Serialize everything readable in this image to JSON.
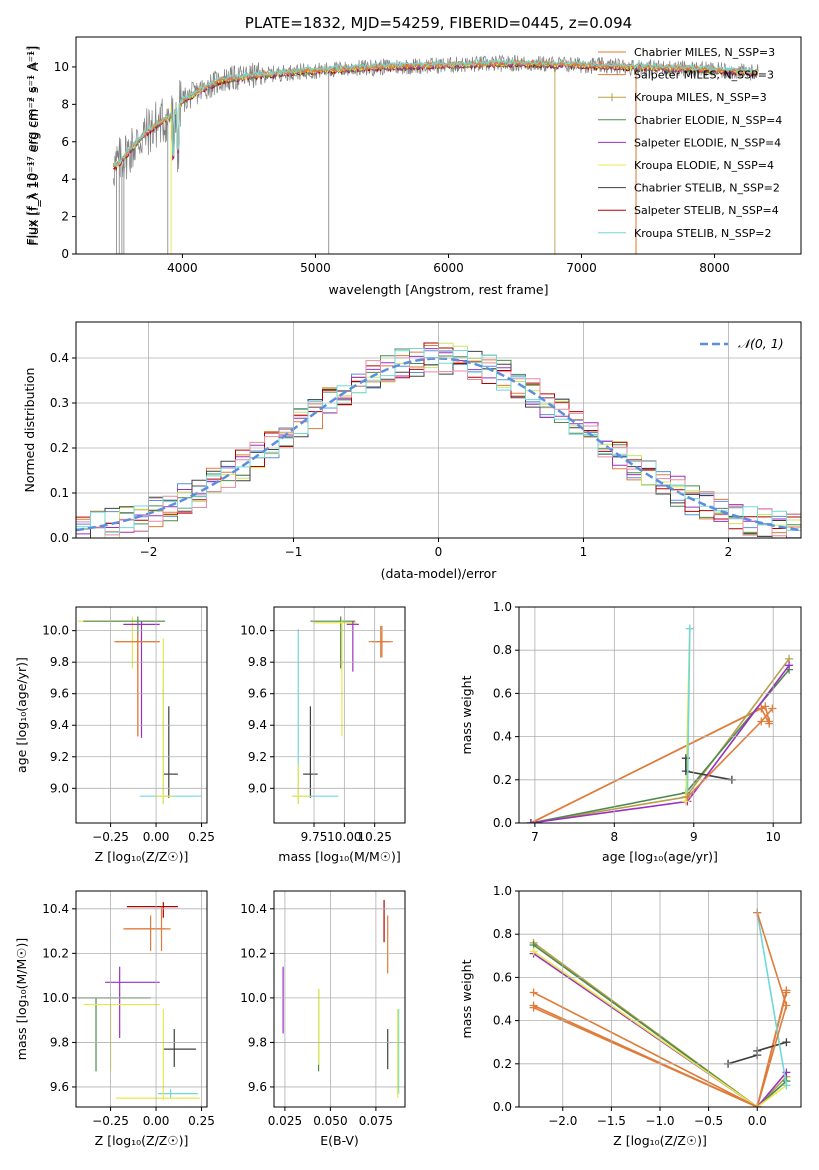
{
  "colors": {
    "grid": "#b0b0b0",
    "data": "#808080",
    "model": [
      "#e07b39",
      "#e07b39",
      "#b8a04a",
      "#4e8a4e",
      "#9b30c0",
      "#e8e848",
      "#404040",
      "#b00000",
      "#70d8d8"
    ],
    "hist": [
      "#e07b39",
      "#5b8ee0",
      "#4e8a4e",
      "#9b30c0",
      "#c8e860",
      "#404040",
      "#b00000",
      "#e88aa0",
      "#70d8d8"
    ],
    "normal": "#5b8ee0"
  },
  "chart_data": [
    {
      "id": "spectrum",
      "type": "line",
      "title": "PLATE=1832, MJD=54259, FIBERID=0445, z=0.094",
      "xlabel": "wavelength [Angstrom, rest frame]",
      "ylabel": "Flux [f_λ 10⁻¹⁷ erg cm⁻² s⁻¹ A⁻¹]",
      "xlim": [
        3200,
        8650
      ],
      "ylim": [
        0,
        11.6
      ],
      "xticks": [
        "4000",
        "5000",
        "6000",
        "7000",
        "8000"
      ],
      "yticks": [
        "0",
        "2",
        "4",
        "6",
        "8",
        "10"
      ],
      "legend_position": "top-right",
      "series": [
        {
          "name": "Chabrier MILES, N_SSP=3"
        },
        {
          "name": "Salpeter MILES, N_SSP=3"
        },
        {
          "name": "Kroupa MILES, N_SSP=3"
        },
        {
          "name": "Chabrier ELODIE, N_SSP=4"
        },
        {
          "name": "Salpeter ELODIE, N_SSP=4"
        },
        {
          "name": "Kroupa ELODIE, N_SSP=4"
        },
        {
          "name": "Chabrier STELIB, N_SSP=2"
        },
        {
          "name": "Salpeter STELIB, N_SSP=4"
        },
        {
          "name": "Kroupa STELIB, N_SSP=2"
        }
      ],
      "continuum_x": [
        3500,
        3600,
        3700,
        3800,
        3900,
        3950,
        4000,
        4100,
        4200,
        4300,
        4500,
        4800,
        5000,
        5500,
        6000,
        6500,
        7000,
        7400,
        7800,
        8300
      ],
      "continuum_y": [
        4.7,
        5.5,
        6.3,
        6.9,
        7.3,
        7.6,
        8.2,
        8.6,
        9.0,
        9.3,
        9.5,
        9.7,
        9.8,
        10.0,
        10.1,
        10.2,
        10.1,
        10.0,
        9.9,
        9.7
      ]
    },
    {
      "id": "residuals",
      "type": "histogram",
      "xlabel": "(data-model)/error",
      "ylabel": "Normed distribution",
      "xlim": [
        -2.5,
        2.5
      ],
      "ylim": [
        0,
        0.48
      ],
      "xticks": [
        "−2",
        "−1",
        "0",
        "1",
        "2"
      ],
      "yticks": [
        "0.0",
        "0.1",
        "0.2",
        "0.3",
        "0.4"
      ],
      "legend": "𝒩(0, 1)",
      "legend_position": "top-right"
    },
    {
      "id": "age-vs-Z",
      "type": "errorbar",
      "xlabel": "Z [log₁₀(Z/Z☉)]",
      "ylabel": "age [log₁₀(age/yr)]",
      "xlim": [
        -0.44,
        0.28
      ],
      "ylim": [
        8.78,
        10.15
      ],
      "xticks": [
        {
          "v": -0.25,
          "t": "−0.25"
        },
        {
          "v": 0,
          "t": "0.00"
        },
        {
          "v": 0.25,
          "t": "0.25"
        }
      ],
      "yticks": [
        {
          "v": 9.0,
          "t": "9.0"
        },
        {
          "v": 9.2,
          "t": "9.2"
        },
        {
          "v": 9.4,
          "t": "9.4"
        },
        {
          "v": 9.6,
          "t": "9.6"
        },
        {
          "v": 9.8,
          "t": "9.8"
        },
        {
          "v": 10.0,
          "t": "10.0"
        }
      ],
      "points": [
        {
          "x": -0.13,
          "y": 10.06,
          "xe": [
            0.3,
            0.17
          ],
          "ye": [
            0.3,
            0.03
          ],
          "c": 5
        },
        {
          "x": -0.1,
          "y": 10.06,
          "xe": [
            0.3,
            0.15
          ],
          "ye": [
            0.3,
            0.03
          ],
          "c": 3
        },
        {
          "x": -0.08,
          "y": 10.04,
          "xe": [
            0.1,
            0.1
          ],
          "ye": [
            0.72,
            0.02
          ],
          "c": 4
        },
        {
          "x": -0.1,
          "y": 9.93,
          "xe": [
            0.12,
            0.12
          ],
          "ye": [
            0.6,
            0.05
          ],
          "c": 1
        },
        {
          "x": -0.1,
          "y": 9.93,
          "xe": [
            0.13,
            0.12
          ],
          "ye": [
            0.6,
            0.05
          ],
          "c": 0
        },
        {
          "x": 0.07,
          "y": 9.09,
          "xe": [
            0.03,
            0.05
          ],
          "ye": [
            0.15,
            0.43
          ],
          "c": 6
        },
        {
          "x": 0.04,
          "y": 8.95,
          "xe": [
            0.13,
            0.21
          ],
          "ye": [
            0.05,
            0.8
          ],
          "c": 8
        },
        {
          "x": 0.04,
          "y": 8.95,
          "xe": [
            0.05,
            0.05
          ],
          "ye": [
            0.05,
            1.0
          ],
          "c": 5
        }
      ]
    },
    {
      "id": "age-vs-mass",
      "type": "errorbar",
      "xlabel": "mass [log₁₀(M/M☉)]",
      "ylabel": "",
      "xlim": [
        9.42,
        10.5
      ],
      "ylim": [
        8.78,
        10.15
      ],
      "xticks": [
        {
          "v": 9.75,
          "t": "9.75"
        },
        {
          "v": 10.0,
          "t": "10.00"
        },
        {
          "v": 10.25,
          "t": "10.25"
        }
      ],
      "yticks": [
        {
          "v": 9.0,
          "t": "9.0"
        },
        {
          "v": 9.2,
          "t": "9.2"
        },
        {
          "v": 9.4,
          "t": "9.4"
        },
        {
          "v": 9.6,
          "t": "9.6"
        },
        {
          "v": 9.8,
          "t": "9.8"
        },
        {
          "v": 10.0,
          "t": "10.0"
        }
      ],
      "points": [
        {
          "x": 9.97,
          "y": 10.06,
          "xe": [
            0.25,
            0.12
          ],
          "ye": [
            0.3,
            0.03
          ],
          "c": 3
        },
        {
          "x": 9.98,
          "y": 10.05,
          "xe": [
            0.23,
            0.12
          ],
          "ye": [
            0.72,
            0.02
          ],
          "c": 5
        },
        {
          "x": 10.07,
          "y": 10.04,
          "xe": [
            0.05,
            0.05
          ],
          "ye": [
            0.3,
            0.02
          ],
          "c": 4
        },
        {
          "x": 10.3,
          "y": 9.93,
          "xe": [
            0.1,
            0.08
          ],
          "ye": [
            0.1,
            0.1
          ],
          "c": 0
        },
        {
          "x": 10.31,
          "y": 9.93,
          "xe": [
            0.08,
            0.09
          ],
          "ye": [
            0.1,
            0.1
          ],
          "c": 1
        },
        {
          "x": 9.72,
          "y": 9.09,
          "xe": [
            0.06,
            0.06
          ],
          "ye": [
            0.15,
            0.43
          ],
          "c": 6
        },
        {
          "x": 9.62,
          "y": 8.95,
          "xe": [
            0.05,
            0.33
          ],
          "ye": [
            0.05,
            1.06
          ],
          "c": 8
        },
        {
          "x": 9.62,
          "y": 8.95,
          "xe": [
            0.05,
            0.1
          ],
          "ye": [
            0.05,
            0.2
          ],
          "c": 5
        }
      ]
    },
    {
      "id": "mass-weight-vs-age",
      "type": "line",
      "xlabel": "age [log₁₀(age/yr)]",
      "ylabel": "mass weight",
      "xlim": [
        6.8,
        10.35
      ],
      "ylim": [
        0,
        1.0
      ],
      "xticks": [
        {
          "v": 7,
          "t": "7"
        },
        {
          "v": 8,
          "t": "8"
        },
        {
          "v": 9,
          "t": "9"
        },
        {
          "v": 10,
          "t": "10"
        }
      ],
      "yticks": [
        {
          "v": 0,
          "t": "0.0"
        },
        {
          "v": 0.2,
          "t": "0.2"
        },
        {
          "v": 0.4,
          "t": "0.4"
        },
        {
          "v": 0.6,
          "t": "0.6"
        },
        {
          "v": 0.8,
          "t": "0.8"
        },
        {
          "v": 1.0,
          "t": "1.0"
        }
      ],
      "series": [
        {
          "c": 0,
          "pts": [
            [
              6.95,
              0.0
            ],
            [
              9.85,
              0.53
            ],
            [
              9.95,
              0.46
            ]
          ]
        },
        {
          "c": 1,
          "pts": [
            [
              6.95,
              0.0
            ],
            [
              9.9,
              0.54
            ],
            [
              9.95,
              0.47
            ]
          ]
        },
        {
          "c": 2,
          "pts": [
            [
              6.95,
              0.0
            ],
            [
              8.9,
              0.12
            ],
            [
              10.2,
              0.76
            ]
          ]
        },
        {
          "c": 3,
          "pts": [
            [
              6.95,
              0.0
            ],
            [
              8.9,
              0.14
            ],
            [
              10.2,
              0.71
            ]
          ]
        },
        {
          "c": 4,
          "pts": [
            [
              6.95,
              0.0
            ],
            [
              8.92,
              0.1
            ],
            [
              10.2,
              0.73
            ]
          ]
        },
        {
          "c": 5,
          "pts": [
            [
              8.9,
              0.1
            ],
            [
              8.95,
              0.9
            ]
          ]
        },
        {
          "c": 6,
          "pts": [
            [
              8.9,
              0.3
            ],
            [
              8.9,
              0.24
            ],
            [
              9.48,
              0.2
            ]
          ]
        },
        {
          "c": 8,
          "pts": [
            [
              8.92,
              0.12
            ],
            [
              8.95,
              0.9
            ]
          ]
        },
        {
          "c": 1,
          "pts": [
            [
              8.92,
              0.12
            ],
            [
              9.85,
              0.47
            ],
            [
              9.99,
              0.53
            ]
          ]
        }
      ]
    },
    {
      "id": "mass-vs-Z",
      "type": "errorbar",
      "xlabel": "Z [log₁₀(Z/Z☉)]",
      "ylabel": "mass [log₁₀(M/M☉)]",
      "xlim": [
        -0.44,
        0.28
      ],
      "ylim": [
        9.51,
        10.48
      ],
      "xticks": [
        {
          "v": -0.25,
          "t": "−0.25"
        },
        {
          "v": 0,
          "t": "0.00"
        },
        {
          "v": 0.25,
          "t": "0.25"
        }
      ],
      "yticks": [
        {
          "v": 9.6,
          "t": "9.6"
        },
        {
          "v": 9.8,
          "t": "9.8"
        },
        {
          "v": 10.0,
          "t": "10.0"
        },
        {
          "v": 10.2,
          "t": "10.2"
        },
        {
          "v": 10.4,
          "t": "10.4"
        }
      ],
      "points": [
        {
          "x": 0.04,
          "y": 10.41,
          "xe": [
            0.2,
            0.08
          ],
          "ye": [
            0.05,
            0.02
          ],
          "c": 7
        },
        {
          "x": 0.03,
          "y": 10.31,
          "xe": [
            0.2,
            0.05
          ],
          "ye": [
            0.1,
            0.1
          ],
          "c": 0
        },
        {
          "x": -0.03,
          "y": 10.31,
          "xe": [
            0.15,
            0.08
          ],
          "ye": [
            0.1,
            0.06
          ],
          "c": 1
        },
        {
          "x": -0.2,
          "y": 10.07,
          "xe": [
            0.08,
            0.22
          ],
          "ye": [
            0.25,
            0.07
          ],
          "c": 4
        },
        {
          "x": -0.33,
          "y": 10.0,
          "xe": [
            0.1,
            0.3
          ],
          "ye": [
            0.33,
            0.0
          ],
          "c": 3
        },
        {
          "x": -0.25,
          "y": 9.97,
          "xe": [
            0.15,
            0.27
          ],
          "ye": [
            0.3,
            0.0
          ],
          "c": 5
        },
        {
          "x": 0.1,
          "y": 9.77,
          "xe": [
            0.06,
            0.12
          ],
          "ye": [
            0.08,
            0.09
          ],
          "c": 6
        },
        {
          "x": 0.08,
          "y": 9.57,
          "xe": [
            0.07,
            0.15
          ],
          "ye": [
            0.02,
            0.02
          ],
          "c": 8
        },
        {
          "x": 0.04,
          "y": 9.55,
          "xe": [
            0.26,
            0.2
          ],
          "ye": [
            0.01,
            0.4
          ],
          "c": 5
        }
      ]
    },
    {
      "id": "mass-vs-EBV",
      "type": "errorbar",
      "xlabel": "E(B-V)",
      "ylabel": "",
      "xlim": [
        0.019,
        0.091
      ],
      "ylim": [
        9.51,
        10.48
      ],
      "xticks": [
        {
          "v": 0.025,
          "t": "0.025"
        },
        {
          "v": 0.05,
          "t": "0.050"
        },
        {
          "v": 0.075,
          "t": "0.075"
        }
      ],
      "yticks": [
        {
          "v": 9.6,
          "t": "9.6"
        },
        {
          "v": 9.8,
          "t": "9.8"
        },
        {
          "v": 10.0,
          "t": "10.0"
        },
        {
          "v": 10.2,
          "t": "10.2"
        },
        {
          "v": 10.4,
          "t": "10.4"
        }
      ],
      "points": [
        {
          "x": 0.0795,
          "y": 10.33,
          "xe": [
            0,
            0
          ],
          "ye": [
            0.08,
            0.11
          ],
          "c": 7
        },
        {
          "x": 0.0815,
          "y": 10.25,
          "xe": [
            0,
            0
          ],
          "ye": [
            0.14,
            0.12
          ],
          "c": 0
        },
        {
          "x": 0.024,
          "y": 9.98,
          "xe": [
            0,
            0
          ],
          "ye": [
            0.14,
            0.16
          ],
          "c": 4
        },
        {
          "x": 0.0435,
          "y": 9.85,
          "xe": [
            0,
            0
          ],
          "ye": [
            0.18,
            0.19
          ],
          "c": 3
        },
        {
          "x": 0.0435,
          "y": 9.87,
          "xe": [
            0,
            0
          ],
          "ye": [
            0.17,
            0.17
          ],
          "c": 5
        },
        {
          "x": 0.0815,
          "y": 9.77,
          "xe": [
            0,
            0
          ],
          "ye": [
            0.09,
            0.09
          ],
          "c": 6
        },
        {
          "x": 0.0875,
          "y": 9.77,
          "xe": [
            0,
            0
          ],
          "ye": [
            0.2,
            0.18
          ],
          "c": 8
        },
        {
          "x": 0.087,
          "y": 9.75,
          "xe": [
            0,
            0
          ],
          "ye": [
            0.2,
            0.2
          ],
          "c": 5
        }
      ]
    },
    {
      "id": "mass-weight-vs-Z",
      "type": "line",
      "xlabel": "Z [log₁₀(Z/Z☉)]",
      "ylabel": "mass weight",
      "xlim": [
        -2.45,
        0.45
      ],
      "ylim": [
        0,
        1.0
      ],
      "xticks": [
        {
          "v": -2.0,
          "t": "−2.0"
        },
        {
          "v": -1.5,
          "t": "−1.5"
        },
        {
          "v": -1.0,
          "t": "−1.0"
        },
        {
          "v": -0.5,
          "t": "−0.5"
        },
        {
          "v": 0.0,
          "t": "0.0"
        }
      ],
      "yticks": [
        {
          "v": 0,
          "t": "0.0"
        },
        {
          "v": 0.2,
          "t": "0.2"
        },
        {
          "v": 0.4,
          "t": "0.4"
        },
        {
          "v": 0.6,
          "t": "0.6"
        },
        {
          "v": 0.8,
          "t": "0.8"
        },
        {
          "v": 1.0,
          "t": "1.0"
        }
      ],
      "series": [
        {
          "c": 0,
          "pts": [
            [
              -2.3,
              0.46
            ],
            [
              0.0,
              0.0
            ],
            [
              0.3,
              0.54
            ]
          ]
        },
        {
          "c": 1,
          "pts": [
            [
              -2.3,
              0.47
            ],
            [
              0.0,
              0.0
            ],
            [
              0.3,
              0.53
            ]
          ]
        },
        {
          "c": 2,
          "pts": [
            [
              -2.3,
              0.76
            ],
            [
              0.0,
              0.0
            ],
            [
              0.3,
              0.14
            ]
          ]
        },
        {
          "c": 3,
          "pts": [
            [
              -2.3,
              0.75
            ],
            [
              0.0,
              0.0
            ],
            [
              0.3,
              0.12
            ]
          ]
        },
        {
          "c": 4,
          "pts": [
            [
              -2.3,
              0.71
            ],
            [
              0.0,
              0.0
            ],
            [
              0.3,
              0.16
            ]
          ]
        },
        {
          "c": 5,
          "pts": [
            [
              -2.3,
              0.72
            ],
            [
              0.0,
              0.0
            ],
            [
              0.3,
              0.1
            ]
          ]
        },
        {
          "c": 6,
          "pts": [
            [
              -0.3,
              0.2
            ],
            [
              0.0,
              0.24
            ],
            [
              0.0,
              0.26
            ],
            [
              0.3,
              0.3
            ]
          ]
        },
        {
          "c": 8,
          "pts": [
            [
              0.0,
              0.9
            ],
            [
              0.3,
              0.1
            ]
          ]
        },
        {
          "c": 1,
          "pts": [
            [
              -2.3,
              0.53
            ],
            [
              0.0,
              0.0
            ],
            [
              0.3,
              0.47
            ],
            [
              0.0,
              0.9
            ]
          ]
        }
      ]
    }
  ]
}
